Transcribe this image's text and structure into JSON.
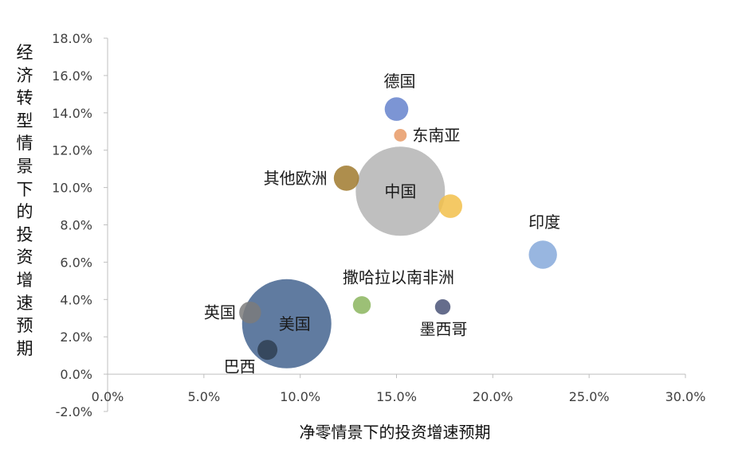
{
  "chart_data": {
    "type": "bubble",
    "xlabel": "净零情景下的投资增速预期",
    "ylabel": "经济转型情景下的投资增速预期",
    "xlim": [
      0,
      30
    ],
    "ylim": [
      -2,
      18
    ],
    "x_ticks": [
      "0.0%",
      "5.0%",
      "10.0%",
      "15.0%",
      "20.0%",
      "25.0%",
      "30.0%"
    ],
    "y_ticks": [
      "-2.0%",
      "0.0%",
      "2.0%",
      "4.0%",
      "6.0%",
      "8.0%",
      "10.0%",
      "12.0%",
      "14.0%",
      "16.0%",
      "18.0%"
    ],
    "grid": false,
    "points": [
      {
        "label": "中国",
        "x": 15.2,
        "y": 9.8,
        "size": 100,
        "color": "#b4b4b4"
      },
      {
        "label": "美国",
        "x": 9.3,
        "y": 2.7,
        "size": 100,
        "color": "#44648f"
      },
      {
        "label": "德国",
        "x": 15.0,
        "y": 14.2,
        "size": 7,
        "color": "#6583cc"
      },
      {
        "label": "东南亚",
        "x": 15.2,
        "y": 12.8,
        "size": 2,
        "color": "#e89a66"
      },
      {
        "label": "其他欧洲",
        "x": 12.4,
        "y": 10.5,
        "size": 8,
        "color": "#a07a2e"
      },
      {
        "label": "",
        "x": 17.8,
        "y": 9.0,
        "size": 7,
        "color": "#f2c04a"
      },
      {
        "label": "印度",
        "x": 22.6,
        "y": 6.4,
        "size": 10,
        "color": "#86a9db"
      },
      {
        "label": "撒哈拉以南非洲",
        "x": 13.2,
        "y": 3.7,
        "size": 4,
        "color": "#8bb55e"
      },
      {
        "label": "墨西哥",
        "x": 17.4,
        "y": 3.6,
        "size": 3,
        "color": "#4a5378"
      },
      {
        "label": "英国",
        "x": 7.4,
        "y": 3.3,
        "size": 6,
        "color": "#7b7b7b"
      },
      {
        "label": "巴西",
        "x": 8.3,
        "y": 1.3,
        "size": 5,
        "color": "#2f3f52"
      }
    ]
  }
}
